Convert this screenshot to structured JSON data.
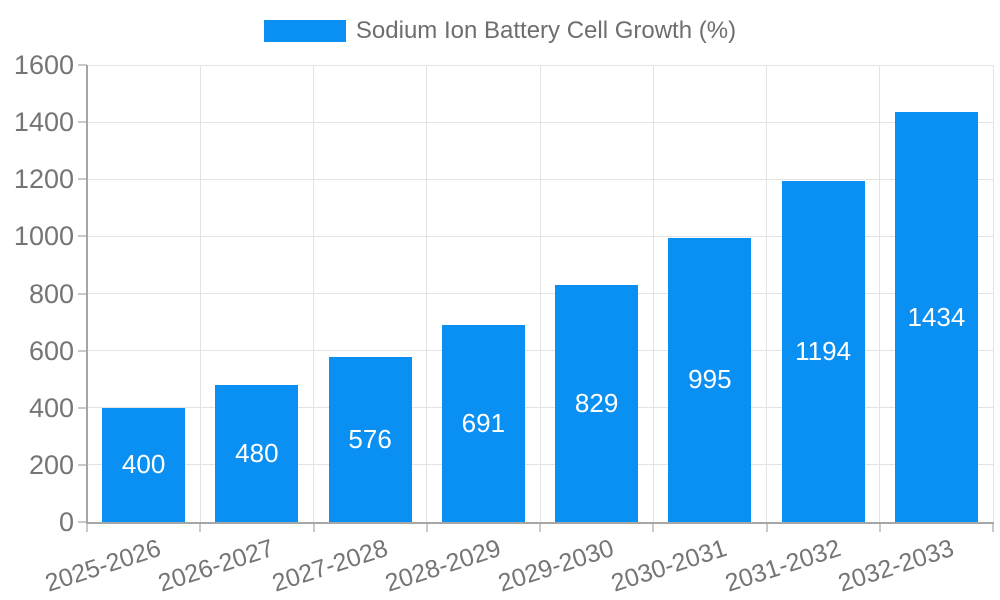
{
  "chart_data": {
    "type": "bar",
    "title": "Sodium Ion Battery Cell Growth (%)",
    "categories": [
      "2025-2026",
      "2026-2027",
      "2027-2028",
      "2028-2029",
      "2029-2030",
      "2030-2031",
      "2031-2032",
      "2032-2033"
    ],
    "values": [
      400,
      480,
      576,
      691,
      829,
      995,
      1194,
      1434
    ],
    "value_labels": [
      "400",
      "480",
      "576",
      "691",
      "829",
      "995",
      "1194",
      "1434"
    ],
    "yticks": [
      0,
      200,
      400,
      600,
      800,
      1000,
      1200,
      1400,
      1600
    ],
    "ytick_labels": [
      "0",
      "200",
      "400",
      "600",
      "800",
      "1000",
      "1200",
      "1400",
      "1600"
    ],
    "ylim": [
      0,
      1600
    ],
    "xlabel": "",
    "ylabel": "",
    "grid": true,
    "legend_position": "top-center",
    "colors": {
      "bar": "#0a8ff2",
      "value_label": "#ffffff",
      "axis_text": "#757575",
      "legend_text": "#6e6e6e",
      "gridline": "#e3e3e3",
      "axis_line": "#a6a6a6",
      "tick_mark": "#c9c9c9",
      "background": "#ffffff"
    }
  }
}
